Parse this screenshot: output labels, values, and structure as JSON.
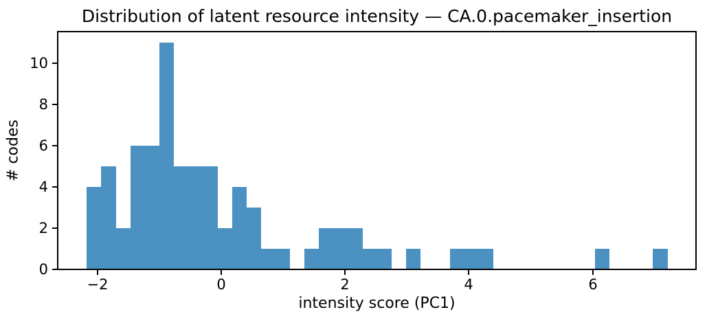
{
  "chart_data": {
    "type": "bar",
    "subtype": "histogram",
    "title": "Distribution of latent resource intensity — CA.0.pacemaker_insertion",
    "xlabel": "intensity score (PC1)",
    "ylabel": "# codes",
    "xticks": [
      -2,
      0,
      2,
      4,
      6
    ],
    "yticks": [
      0,
      2,
      4,
      6,
      8,
      10
    ],
    "xlim": [
      -2.64,
      7.67
    ],
    "ylim": [
      0,
      11.55
    ],
    "bins": {
      "start": -2.17,
      "width": 0.2345,
      "count": 40
    },
    "counts": [
      4,
      5,
      2,
      6,
      6,
      11,
      5,
      5,
      5,
      2,
      4,
      3,
      1,
      1,
      0,
      1,
      2,
      2,
      2,
      1,
      1,
      0,
      1,
      0,
      0,
      1,
      1,
      1,
      0,
      0,
      0,
      0,
      0,
      0,
      0,
      1,
      0,
      0,
      0,
      1
    ],
    "legend": null,
    "grid": false,
    "colors": {
      "bar": "#4b92c3",
      "axis": "#000000",
      "text": "#000000",
      "background": "#ffffff"
    }
  }
}
